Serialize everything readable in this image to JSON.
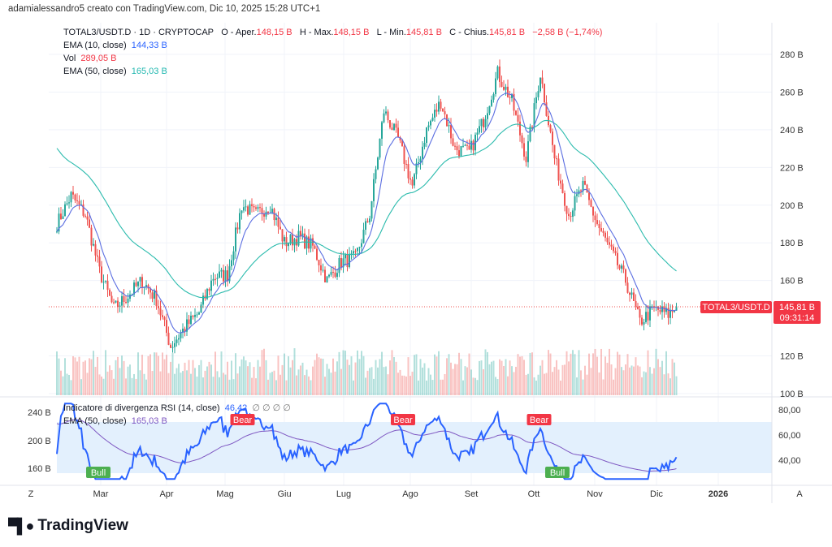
{
  "credit": "adamialessandro5 creato con TradingView.com, Dic 10, 2025 15:28 UTC+1",
  "legend": {
    "symbol": "TOTAL3/USDT.D · 1D · CRYPTOCAP",
    "open_label": "O - Aper.",
    "open": "148,15 B",
    "high_label": "H - Max.",
    "high": "148,15 B",
    "low_label": "L - Min.",
    "low": "145,81 B",
    "close_label": "C - Chius.",
    "close": "145,81 B",
    "change": "−2,58 B (−1,74%)",
    "ema10_label": "EMA (10, close)",
    "ema10": "144,33 B",
    "vol_label": "Vol",
    "vol": "289,05 B",
    "ema50_label": "EMA (50, close)",
    "ema50": "165,03 B"
  },
  "rsi_legend": {
    "label": "Indicatore di divergenza RSI (14, close)",
    "value": "46,42",
    "na": "∅ ∅ ∅ ∅",
    "ema_label": "EMA (50, close)",
    "ema_value": "165,03 B"
  },
  "price_tag": {
    "symbol": "TOTAL3/USDT.D",
    "price": "145,81 B",
    "countdown": "09:31:14"
  },
  "colors": {
    "up": "#26a69a",
    "down": "#ef5350",
    "ema10": "#5b6ee1",
    "ema50": "#2bbbad",
    "rsi": "#2962ff",
    "rsi_ema": "#7e57c2",
    "band": "#e3f0fd"
  },
  "axis": {
    "price_ticks": [
      "280 B",
      "260 B",
      "240 B",
      "220 B",
      "200 B",
      "180 B",
      "160 B",
      "120 B",
      "100 B"
    ],
    "rsi_ticks": [
      "80,00",
      "60,00",
      "40,00"
    ],
    "rsi_left_ticks": [
      "240 B",
      "200 B",
      "160 B"
    ],
    "time_ticks": [
      "Mar",
      "Apr",
      "Mag",
      "Giu",
      "Lug",
      "Ago",
      "Set",
      "Ott",
      "Nov",
      "Dic",
      "2026"
    ],
    "zoom_btn": "Z",
    "auto_btn": "A"
  },
  "signals": [
    {
      "label": "Bull",
      "date": "2025-02-28"
    },
    {
      "label": "Bear",
      "date": "2025-05-10"
    },
    {
      "label": "Bear",
      "date": "2025-07-28"
    },
    {
      "label": "Bear",
      "date": "2025-10-03"
    },
    {
      "label": "Bull",
      "date": "2025-10-12"
    }
  ],
  "logo": "TradingView",
  "chart_data": {
    "type": "candlestick",
    "ylabel": "",
    "ylim": [
      100,
      285
    ],
    "rsi_ylim": [
      20,
      85
    ],
    "series": [
      {
        "date": "2025-02-08",
        "close": 190
      },
      {
        "date": "2025-02-15",
        "close": 205
      },
      {
        "date": "2025-02-22",
        "close": 195
      },
      {
        "date": "2025-03-01",
        "close": 165
      },
      {
        "date": "2025-03-08",
        "close": 145
      },
      {
        "date": "2025-03-15",
        "close": 152
      },
      {
        "date": "2025-03-22",
        "close": 160
      },
      {
        "date": "2025-03-29",
        "close": 150
      },
      {
        "date": "2025-04-05",
        "close": 125
      },
      {
        "date": "2025-04-12",
        "close": 135
      },
      {
        "date": "2025-04-19",
        "close": 143
      },
      {
        "date": "2025-04-26",
        "close": 162
      },
      {
        "date": "2025-05-03",
        "close": 163
      },
      {
        "date": "2025-05-10",
        "close": 200
      },
      {
        "date": "2025-05-17",
        "close": 195
      },
      {
        "date": "2025-05-24",
        "close": 200
      },
      {
        "date": "2025-05-31",
        "close": 180
      },
      {
        "date": "2025-06-07",
        "close": 183
      },
      {
        "date": "2025-06-14",
        "close": 178
      },
      {
        "date": "2025-06-21",
        "close": 160
      },
      {
        "date": "2025-06-28",
        "close": 170
      },
      {
        "date": "2025-07-05",
        "close": 172
      },
      {
        "date": "2025-07-12",
        "close": 195
      },
      {
        "date": "2025-07-19",
        "close": 250
      },
      {
        "date": "2025-07-26",
        "close": 235
      },
      {
        "date": "2025-08-02",
        "close": 210
      },
      {
        "date": "2025-08-09",
        "close": 240
      },
      {
        "date": "2025-08-16",
        "close": 255
      },
      {
        "date": "2025-08-23",
        "close": 230
      },
      {
        "date": "2025-08-30",
        "close": 228
      },
      {
        "date": "2025-09-06",
        "close": 245
      },
      {
        "date": "2025-09-13",
        "close": 270
      },
      {
        "date": "2025-09-20",
        "close": 255
      },
      {
        "date": "2025-09-27",
        "close": 225
      },
      {
        "date": "2025-10-04",
        "close": 270
      },
      {
        "date": "2025-10-11",
        "close": 225
      },
      {
        "date": "2025-10-18",
        "close": 195
      },
      {
        "date": "2025-10-25",
        "close": 210
      },
      {
        "date": "2025-11-01",
        "close": 190
      },
      {
        "date": "2025-11-08",
        "close": 175
      },
      {
        "date": "2025-11-15",
        "close": 160
      },
      {
        "date": "2025-11-22",
        "close": 138
      },
      {
        "date": "2025-11-29",
        "close": 145
      },
      {
        "date": "2025-12-06",
        "close": 142
      },
      {
        "date": "2025-12-10",
        "close": 145.81
      }
    ]
  }
}
